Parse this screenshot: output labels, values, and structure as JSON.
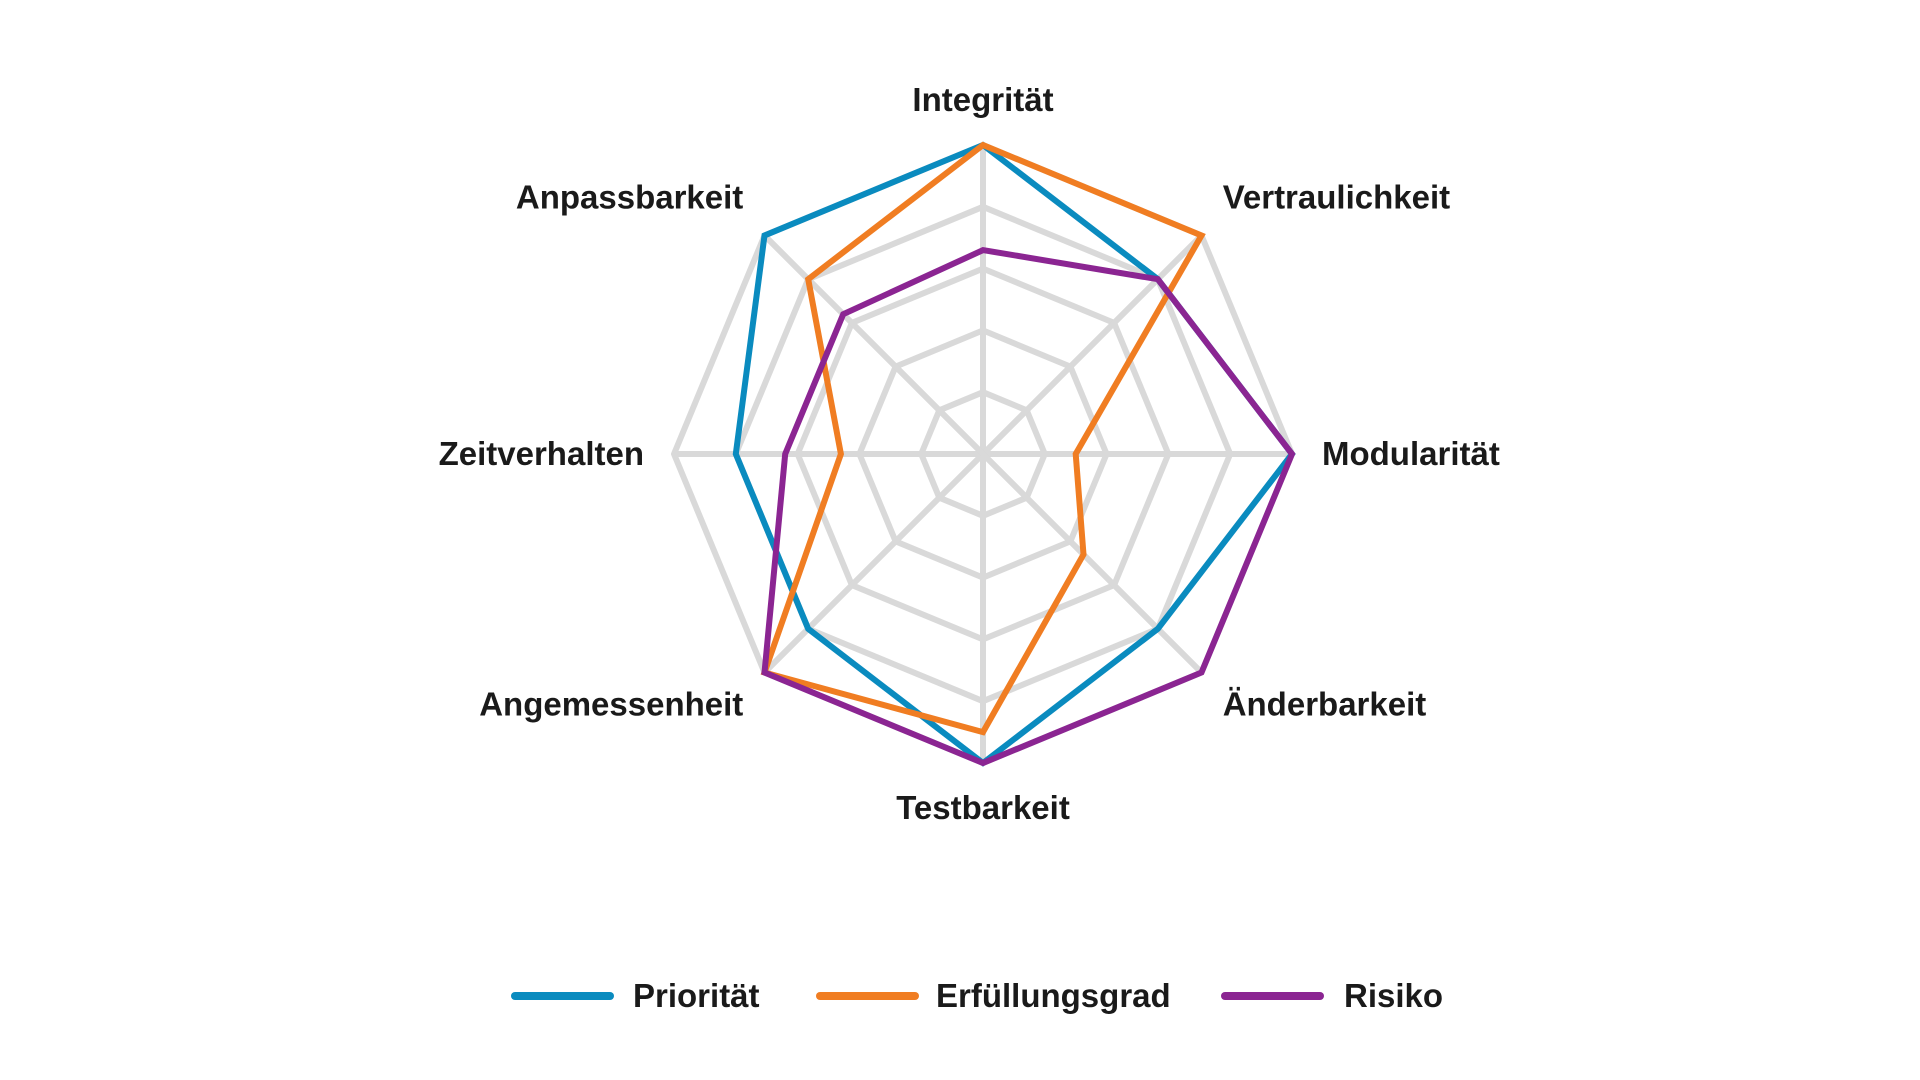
{
  "chart_data": {
    "type": "radar",
    "title": "",
    "categories": [
      "Integrität",
      "Vertraulichkeit",
      "Modularität",
      "Änderbarkeit",
      "Testbarkeit",
      "Angemessenheit",
      "Zeitverhalten",
      "Anpassbarkeit"
    ],
    "rlim": [
      0,
      5
    ],
    "grid": true,
    "grid_levels": 5,
    "legend_position": "bottom",
    "series": [
      {
        "name": "Priorität",
        "color": "#0a8bbf",
        "values": [
          5,
          4,
          5,
          4,
          5,
          4,
          4,
          5
        ]
      },
      {
        "name": "Erfüllungsgrad",
        "color": "#f07d22",
        "values": [
          5,
          5,
          1.5,
          2.3,
          4.5,
          5,
          2.3,
          4
        ]
      },
      {
        "name": "Risiko",
        "color": "#8b2592",
        "values": [
          3.3,
          4,
          5,
          5,
          5,
          5,
          3.2,
          3.2
        ]
      }
    ]
  }
}
